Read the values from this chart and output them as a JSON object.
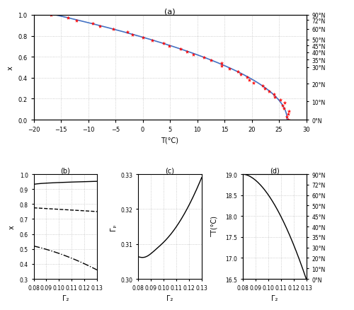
{
  "panel_a": {
    "title": "(a)",
    "xlabel": "T(°C)",
    "ylabel": "x",
    "xlim": [
      -20,
      30
    ],
    "ylim": [
      0,
      1
    ],
    "xticks": [
      -20,
      -15,
      -10,
      -5,
      0,
      5,
      10,
      15,
      20,
      25,
      30
    ],
    "yticks": [
      0,
      0.2,
      0.4,
      0.6,
      0.8,
      1.0
    ],
    "right_labels": [
      "90°N",
      "72°N",
      "60°N",
      "50°N",
      "45°N",
      "40°N",
      "35°N",
      "30°N",
      "20°N",
      "10°N",
      "0°N"
    ],
    "solid_color": "#4472c4",
    "asterisk_color": "#ff0000"
  },
  "panel_b": {
    "label": "(b)",
    "xlabel": "Γ₂",
    "ylabel": "x",
    "xlim": [
      0.08,
      0.13
    ],
    "ylim": [
      0.3,
      1.0
    ],
    "xticks": [
      0.08,
      0.09,
      0.1,
      0.11,
      0.12,
      0.13
    ],
    "yticks": [
      0.3,
      0.4,
      0.5,
      0.6,
      0.7,
      0.8,
      0.9,
      1.0
    ]
  },
  "panel_c": {
    "label": "(c)",
    "xlabel": "Γ₂",
    "ylabel": "Γₚ",
    "xlim": [
      0.08,
      0.13
    ],
    "ylim": [
      0.3,
      0.33
    ],
    "xticks": [
      0.08,
      0.09,
      0.1,
      0.11,
      0.12,
      0.13
    ],
    "yticks": [
      0.3,
      0.31,
      0.32,
      0.33
    ]
  },
  "panel_d": {
    "label": "(d)",
    "xlabel": "Γ₂",
    "ylabel": "̅T(°C)",
    "xlim": [
      0.08,
      0.13
    ],
    "ylim": [
      16.5,
      19.0
    ],
    "xticks": [
      0.08,
      0.09,
      0.1,
      0.11,
      0.12,
      0.13
    ],
    "yticks": [
      16.5,
      17.0,
      17.5,
      18.0,
      18.5,
      19.0
    ],
    "right_labels": [
      "90°N",
      "72°N",
      "60°N",
      "50°N",
      "45°N",
      "40°N",
      "35°N",
      "30°N",
      "20°N",
      "10°N",
      "0°N"
    ]
  },
  "line_color": "#000000",
  "grid_color": "#c0c0c0",
  "background": "#ffffff"
}
